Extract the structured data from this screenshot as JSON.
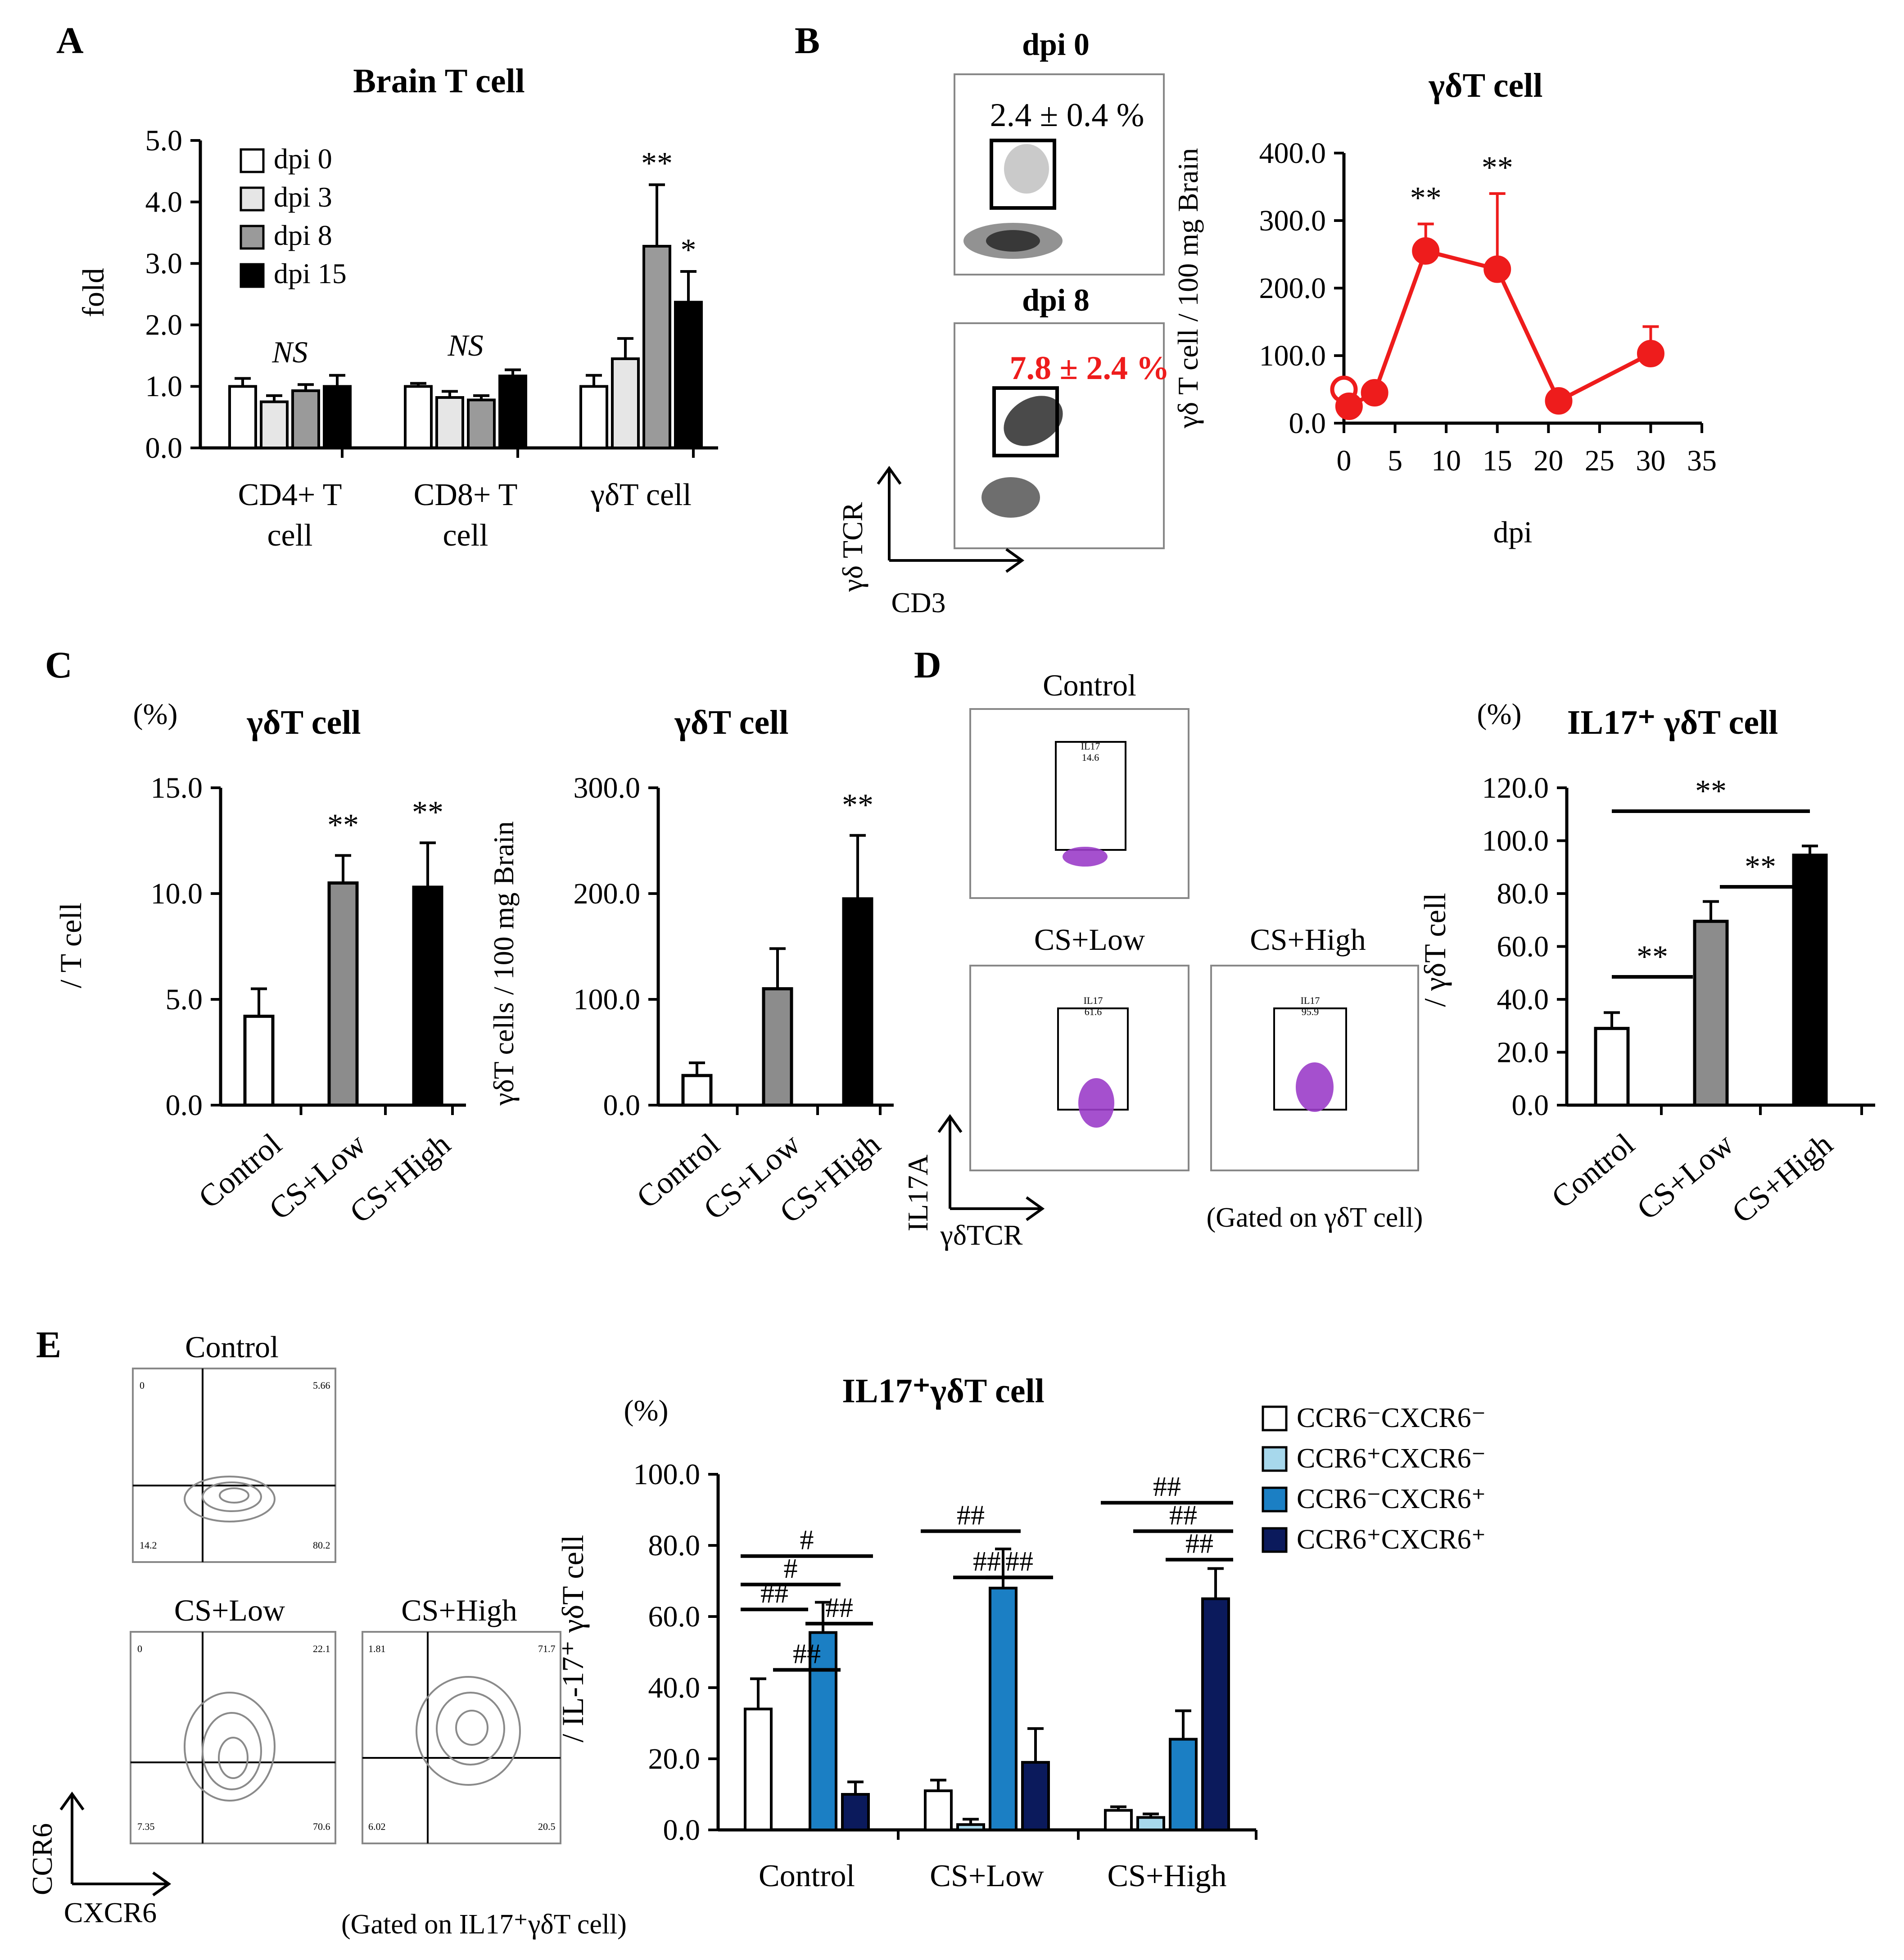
{
  "panels": {
    "A": {
      "label": "A",
      "chart_data": {
        "type": "bar",
        "title": "Brain T cell",
        "ylabel": "fold",
        "ylim": [
          0,
          5
        ],
        "yticks": [
          "0.0",
          "1.0",
          "2.0",
          "3.0",
          "4.0",
          "5.0"
        ],
        "categories": [
          [
            "CD4+ T",
            "cell"
          ],
          [
            "CD8+ T",
            "cell"
          ],
          [
            "γδT cell"
          ]
        ],
        "series": [
          {
            "name": "dpi 0",
            "color": "#ffffff",
            "values": [
              1.0,
              1.0,
              1.0
            ],
            "errors": [
              0.13,
              0.05,
              0.18
            ]
          },
          {
            "name": "dpi 3",
            "color": "#e6e6e6",
            "values": [
              0.75,
              0.82,
              1.45
            ],
            "errors": [
              0.1,
              0.1,
              0.33
            ]
          },
          {
            "name": "dpi 8",
            "color": "#9a9a9a",
            "values": [
              0.93,
              0.78,
              3.28
            ],
            "errors": [
              0.1,
              0.07,
              1.0
            ]
          },
          {
            "name": "dpi 15",
            "color": "#000000",
            "values": [
              1.0,
              1.17,
              2.37
            ],
            "errors": [
              0.18,
              0.1,
              0.5
            ]
          }
        ],
        "group_annotations": [
          "NS",
          "NS",
          ""
        ],
        "significance": [
          {
            "group": 2,
            "series": 2,
            "text": "**"
          },
          {
            "group": 2,
            "series": 3,
            "text": "*"
          }
        ]
      }
    },
    "B": {
      "label": "B",
      "flow_top": {
        "title": "dpi 0",
        "value": "2.4 ± 0.4 %"
      },
      "flow_bottom": {
        "title": "dpi 8",
        "value": "7.8 ± 2.4 %"
      },
      "axis_labels": {
        "y": "γδ TCR",
        "x": "CD3"
      },
      "chart_data": {
        "type": "line",
        "title": "γδT cell",
        "ylabel": "γδ T cell / 100 mg Brain",
        "xlabel": "dpi",
        "ylim": [
          0,
          400
        ],
        "xlim": [
          0,
          35
        ],
        "yticks": [
          "0.0",
          "100.0",
          "200.0",
          "300.0",
          "400.0"
        ],
        "xticks": [
          "0",
          "5",
          "10",
          "15",
          "20",
          "25",
          "30",
          "35"
        ],
        "color": "#ee1c1c",
        "x": [
          0,
          0.5,
          3,
          8,
          15,
          21,
          30
        ],
        "y": [
          50,
          25,
          45,
          255,
          228,
          33,
          103
        ],
        "errors": [
          0,
          0,
          8,
          40,
          112,
          5,
          40
        ],
        "open_markers": [
          0
        ],
        "significance": [
          {
            "x": 8,
            "text": "**"
          },
          {
            "x": 15,
            "text": "**"
          }
        ]
      }
    },
    "C": {
      "label": "C",
      "chart_left": {
        "type": "bar",
        "title": "γδT cell",
        "unit": "(%)",
        "ylabel": "/ T cell",
        "ylim": [
          0,
          15
        ],
        "yticks": [
          "0.0",
          "5.0",
          "10.0",
          "15.0"
        ],
        "categories": [
          "Control",
          "CS+Low",
          "CS+High"
        ],
        "colors": [
          "#ffffff",
          "#8c8c8c",
          "#000000"
        ],
        "values": [
          4.2,
          10.5,
          10.3
        ],
        "errors": [
          1.3,
          1.3,
          2.1
        ],
        "significance": [
          "",
          "**",
          "**"
        ]
      },
      "chart_right": {
        "type": "bar",
        "title": "γδT cell",
        "ylabel": "γδT cells / 100 mg Brain",
        "ylim": [
          0,
          300
        ],
        "yticks": [
          "0.0",
          "100.0",
          "200.0",
          "300.0"
        ],
        "categories": [
          "Control",
          "CS+Low",
          "CS+High"
        ],
        "colors": [
          "#ffffff",
          "#8c8c8c",
          "#000000"
        ],
        "values": [
          28,
          110,
          195
        ],
        "errors": [
          12,
          38,
          60
        ],
        "significance": [
          "",
          "",
          "**"
        ]
      }
    },
    "D": {
      "label": "D",
      "plots": [
        {
          "title": "Control",
          "gate_name": "IL17",
          "gate_value": "14.6"
        },
        {
          "title": "CS+Low",
          "gate_name": "IL17",
          "gate_value": "61.6"
        },
        {
          "title": "CS+High",
          "gate_name": "IL17",
          "gate_value": "95.9"
        }
      ],
      "axis_labels": {
        "y": "IL17A",
        "x": "γδTCR"
      },
      "gated_note": "(Gated on γδT cell)",
      "chart_data": {
        "type": "bar",
        "title": "IL17⁺ γδT cell",
        "unit": "(%)",
        "ylabel": "/ γδT cell",
        "ylim": [
          0,
          120
        ],
        "yticks": [
          "0.0",
          "20.0",
          "40.0",
          "60.0",
          "80.0",
          "100.0",
          "120.0"
        ],
        "categories": [
          "Control",
          "CS+Low",
          "CS+High"
        ],
        "colors": [
          "#ffffff",
          "#8c8c8c",
          "#000000"
        ],
        "values": [
          29,
          69.5,
          94.5
        ],
        "errors": [
          6,
          7.5,
          3.5
        ],
        "brackets": [
          {
            "from": 0,
            "to": 2,
            "text": "**"
          },
          {
            "from": 1,
            "to": 2,
            "text": "**"
          },
          {
            "from": 0,
            "to": 1,
            "text": "**"
          }
        ]
      }
    },
    "E": {
      "label": "E",
      "plots": [
        {
          "title": "Control",
          "q1": "0",
          "q2": "5.66",
          "q3": "80.2",
          "q4": "14.2"
        },
        {
          "title": "CS+Low",
          "q1": "0",
          "q2": "22.1",
          "q3": "70.6",
          "q4": "7.35"
        },
        {
          "title": "CS+High",
          "q1": "1.81",
          "q2": "71.7",
          "q3": "20.5",
          "q4": "6.02"
        }
      ],
      "axis_labels": {
        "y": "CCR6",
        "x": "CXCR6"
      },
      "gated_note": "(Gated on IL17⁺γδT cell)",
      "chart_data": {
        "type": "bar",
        "title": "IL17⁺γδT cell",
        "unit": "(%)",
        "ylabel": "/ IL-17⁺ γδT cell",
        "ylim": [
          0,
          100
        ],
        "yticks": [
          "0.0",
          "20.0",
          "40.0",
          "60.0",
          "80.0",
          "100.0"
        ],
        "categories": [
          "Control",
          "CS+Low",
          "CS+High"
        ],
        "series": [
          {
            "name": "CCR6⁻CXCR6⁻",
            "color": "#ffffff",
            "values": [
              34,
              11,
              5.5
            ],
            "errors": [
              8.5,
              3,
              1
            ]
          },
          {
            "name": "CCR6⁺CXCR6⁻",
            "color": "#a7d8ec",
            "values": [
              0,
              1.5,
              3.5
            ],
            "errors": [
              0,
              1.5,
              1
            ]
          },
          {
            "name": "CCR6⁻CXCR6⁺",
            "color": "#1b7fc4",
            "values": [
              55.5,
              68,
              25.5
            ],
            "errors": [
              8.5,
              11,
              8
            ]
          },
          {
            "name": "CCR6⁺CXCR6⁺",
            "color": "#0b1a5c",
            "values": [
              10,
              19,
              65
            ],
            "errors": [
              3.5,
              9.5,
              8.5
            ]
          }
        ],
        "significance_lines": [
          {
            "group": 0,
            "from": 0,
            "to": 3,
            "level": 77,
            "text": "#"
          },
          {
            "group": 0,
            "from": 0,
            "to": 2,
            "level": 69,
            "text": "#"
          },
          {
            "group": 0,
            "from": 0,
            "to": 1,
            "level": 62,
            "text": "##"
          },
          {
            "group": 0,
            "from": 1,
            "to": 2,
            "level": 45,
            "text": "##"
          },
          {
            "group": 0,
            "from": 2,
            "to": 3,
            "level": 58,
            "text": "##"
          },
          {
            "group": 1,
            "from": 0,
            "to": 2,
            "level": 84,
            "text": "##"
          },
          {
            "group": 1,
            "from": 1,
            "to": 2,
            "level": 71,
            "text": "##"
          },
          {
            "group": 1,
            "from": 2,
            "to": 3,
            "level": 71,
            "text": "##"
          },
          {
            "group": 2,
            "from": 0,
            "to": 3,
            "level": 92,
            "text": "##"
          },
          {
            "group": 2,
            "from": 1,
            "to": 3,
            "level": 84,
            "text": "##"
          },
          {
            "group": 2,
            "from": 2,
            "to": 3,
            "level": 76,
            "text": "##"
          }
        ]
      }
    }
  }
}
